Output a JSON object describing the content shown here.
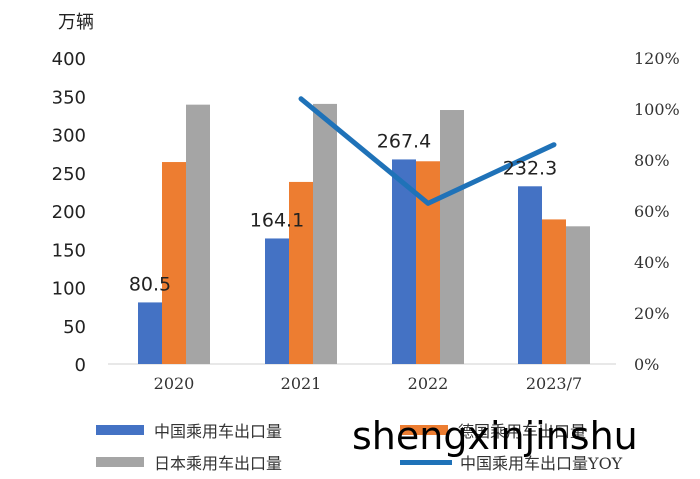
{
  "chart_data": {
    "type": "bar",
    "categories": [
      "2020",
      "2021",
      "2022",
      "2023/7"
    ],
    "y_left_unit": "万辆",
    "y_left_ticks": [
      "0",
      "50",
      "100",
      "150",
      "200",
      "250",
      "300",
      "350",
      "400"
    ],
    "ylim": [
      0,
      400
    ],
    "y_right_ticks": [
      "0%",
      "20%",
      "40%",
      "60%",
      "80%",
      "100%",
      "120%"
    ],
    "y2lim": [
      0,
      120
    ],
    "series": [
      {
        "name": "中国乘用车出口量",
        "type": "bar",
        "color": "#4472C4",
        "values": [
          80.5,
          164.1,
          267.4,
          232.3
        ],
        "labels": [
          "80.5",
          "164.1",
          "267.4",
          "232.3"
        ]
      },
      {
        "name": "德国乘用车出口量",
        "type": "bar",
        "color": "#ED7D31",
        "values": [
          264,
          238,
          265,
          189
        ]
      },
      {
        "name": "日本乘用车出口量",
        "type": "bar",
        "color": "#A5A5A5",
        "values": [
          339,
          340,
          332,
          180
        ]
      },
      {
        "name": "中国乘用车出口量YOY",
        "type": "line",
        "axis": "right",
        "color": "#1F72B8",
        "values": [
          null,
          104,
          63,
          86
        ]
      }
    ],
    "grid": false,
    "legend_position": "bottom"
  },
  "watermark": "shengxinjinshu"
}
